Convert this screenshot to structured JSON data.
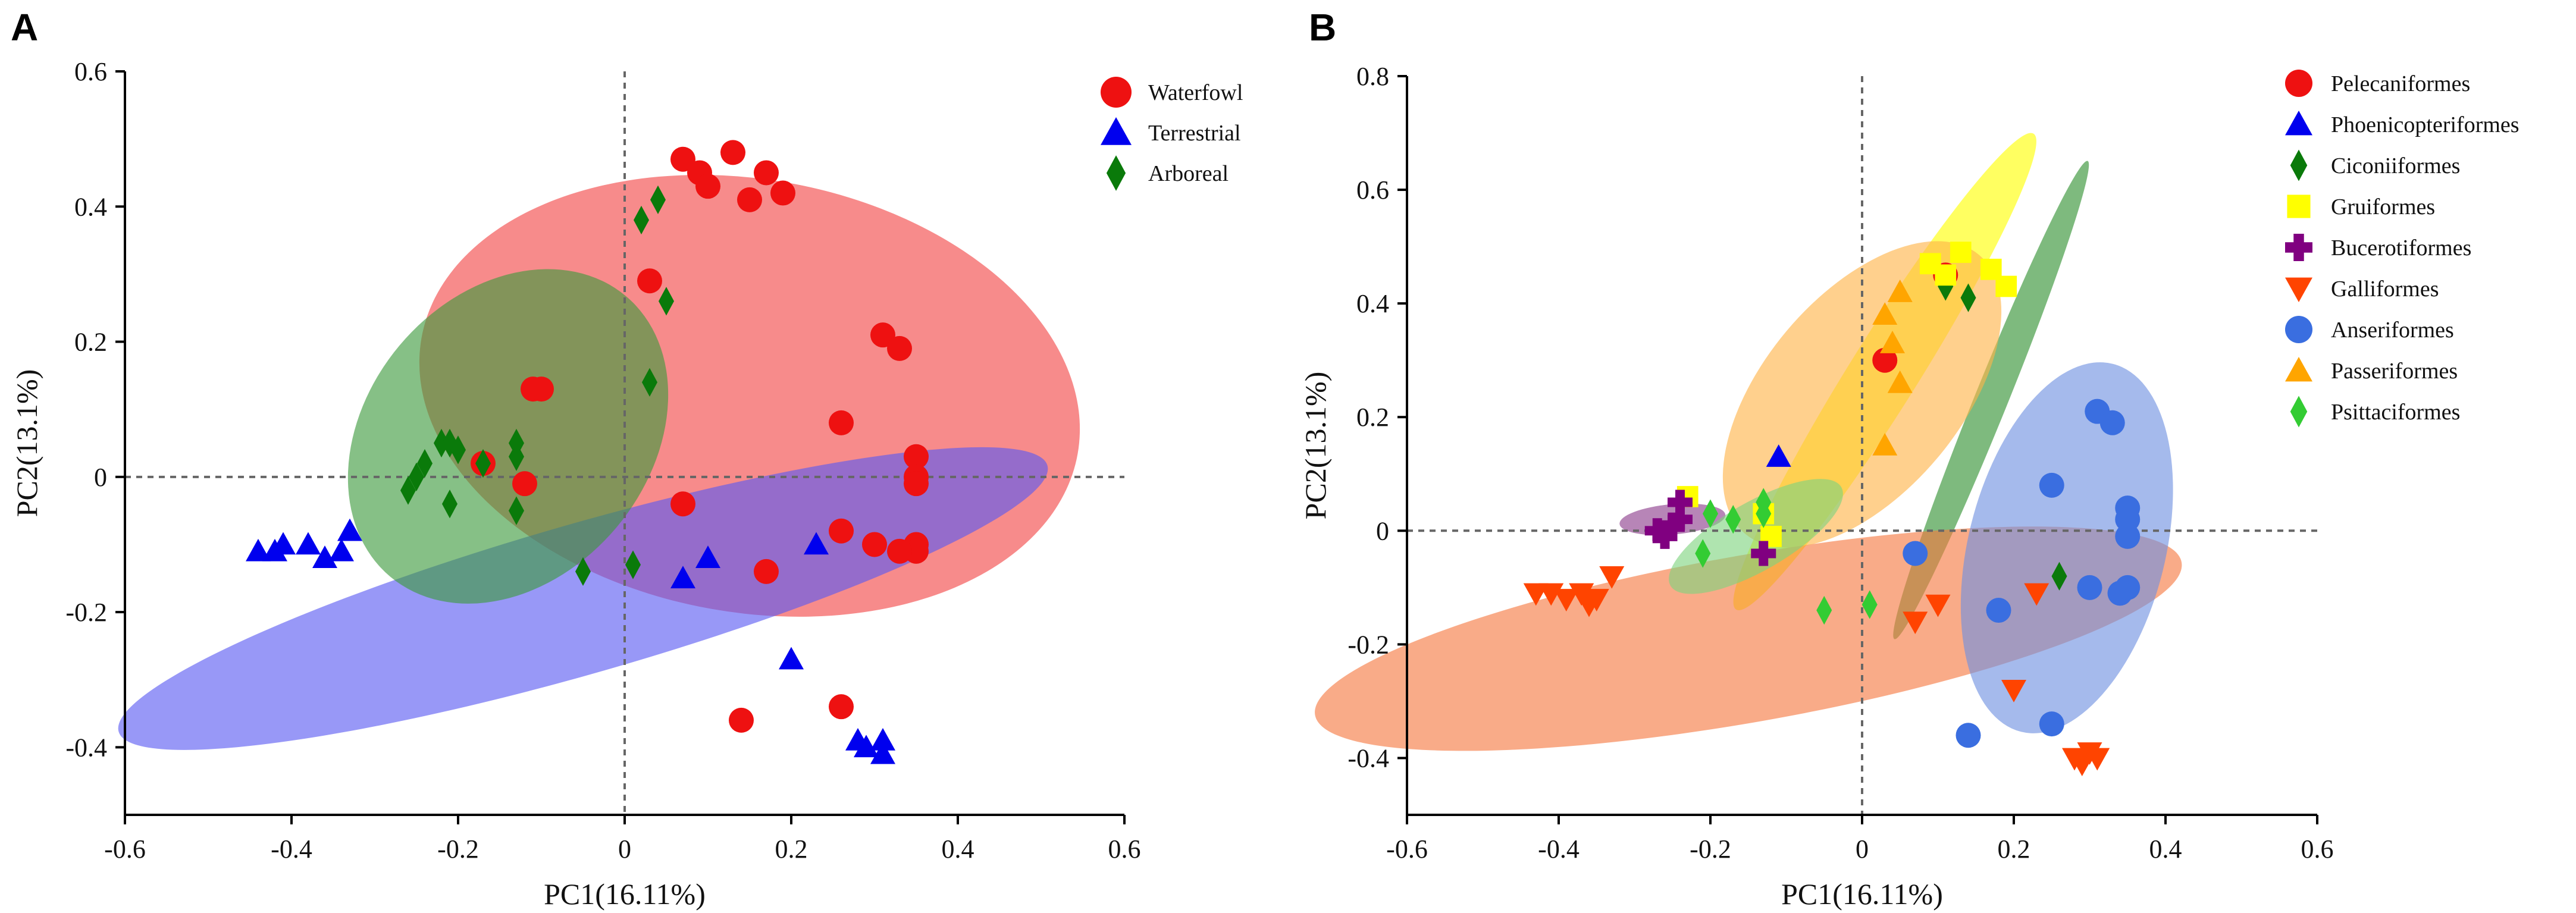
{
  "chart_data": [
    {
      "type": "scatter",
      "panel_label": "A",
      "xlabel": "PC1(16.11%)",
      "ylabel": "PC2(13.1%)",
      "xlim": [
        -0.6,
        0.6
      ],
      "ylim": [
        -0.5,
        0.6
      ],
      "xticks": [
        -0.6,
        -0.4,
        -0.2,
        0,
        0.2,
        0.4,
        0.6
      ],
      "xtick_labels": [
        "-0.6",
        "-0.4",
        "-0.2",
        "0",
        "0.2",
        "0.4",
        "0.6"
      ],
      "yticks": [
        -0.4,
        -0.2,
        0,
        0.2,
        0.4,
        0.6
      ],
      "ytick_labels": [
        "-0.4",
        "-0.2",
        "0",
        "0.2",
        "0.4",
        "0.6"
      ],
      "reference_lines": {
        "x": 0,
        "y": 0
      },
      "legend_position": "top-right",
      "series": [
        {
          "name": "Waterfowl",
          "color": "#ee1111",
          "marker": "circle",
          "ellipse": {
            "color": "#f24444",
            "cx": 0.15,
            "cy": 0.12,
            "rx": 0.26,
            "ry": 0.4,
            "angle": -80
          },
          "points": [
            [
              0.07,
              0.47
            ],
            [
              0.09,
              0.45
            ],
            [
              0.1,
              0.43
            ],
            [
              0.13,
              0.48
            ],
            [
              0.17,
              0.45
            ],
            [
              0.19,
              0.42
            ],
            [
              0.15,
              0.41
            ],
            [
              0.03,
              0.29
            ],
            [
              -0.11,
              0.13
            ],
            [
              -0.1,
              0.13
            ],
            [
              -0.17,
              0.02
            ],
            [
              -0.12,
              -0.01
            ],
            [
              0.07,
              -0.04
            ],
            [
              0.26,
              0.08
            ],
            [
              0.31,
              0.21
            ],
            [
              0.33,
              0.19
            ],
            [
              0.35,
              0.03
            ],
            [
              0.35,
              0.0
            ],
            [
              0.35,
              -0.01
            ],
            [
              0.35,
              -0.1
            ],
            [
              0.35,
              -0.11
            ],
            [
              0.33,
              -0.11
            ],
            [
              0.3,
              -0.1
            ],
            [
              0.26,
              -0.08
            ],
            [
              0.17,
              -0.14
            ],
            [
              0.26,
              -0.34
            ],
            [
              0.14,
              -0.36
            ]
          ]
        },
        {
          "name": "Terrestrial",
          "color": "#0000ee",
          "marker": "triangle",
          "ellipse": {
            "color": "#5858f2",
            "cx": -0.05,
            "cy": -0.18,
            "rx": 0.58,
            "ry": 0.09,
            "angle": -16
          },
          "points": [
            [
              -0.44,
              -0.11
            ],
            [
              -0.42,
              -0.11
            ],
            [
              -0.41,
              -0.1
            ],
            [
              -0.38,
              -0.1
            ],
            [
              -0.36,
              -0.12
            ],
            [
              -0.34,
              -0.11
            ],
            [
              -0.33,
              -0.08
            ],
            [
              0.1,
              -0.12
            ],
            [
              0.07,
              -0.15
            ],
            [
              0.23,
              -0.1
            ],
            [
              0.2,
              -0.27
            ],
            [
              0.28,
              -0.39
            ],
            [
              0.29,
              -0.4
            ],
            [
              0.31,
              -0.39
            ],
            [
              0.31,
              -0.41
            ]
          ]
        },
        {
          "name": "Arboreal",
          "color": "#0a7a0a",
          "marker": "diamond",
          "ellipse": {
            "color": "#3c9a3c",
            "cx": -0.14,
            "cy": 0.06,
            "rx": 0.17,
            "ry": 0.22,
            "angle": 40
          },
          "points": [
            [
              0.02,
              0.38
            ],
            [
              0.04,
              0.41
            ],
            [
              0.05,
              0.26
            ],
            [
              0.03,
              0.14
            ],
            [
              -0.22,
              0.05
            ],
            [
              -0.21,
              0.05
            ],
            [
              -0.2,
              0.04
            ],
            [
              -0.24,
              0.02
            ],
            [
              -0.25,
              0.0
            ],
            [
              -0.26,
              -0.02
            ],
            [
              -0.13,
              0.05
            ],
            [
              -0.13,
              0.03
            ],
            [
              -0.17,
              0.02
            ],
            [
              -0.21,
              -0.04
            ],
            [
              -0.13,
              -0.05
            ],
            [
              -0.05,
              -0.14
            ],
            [
              0.01,
              -0.13
            ]
          ]
        }
      ]
    },
    {
      "type": "scatter",
      "panel_label": "B",
      "xlabel": "PC1(16.11%)",
      "ylabel": "PC2(13.1%)",
      "xlim": [
        -0.6,
        0.6
      ],
      "ylim": [
        -0.5,
        0.8
      ],
      "xticks": [
        -0.6,
        -0.4,
        -0.2,
        0,
        0.2,
        0.4,
        0.6
      ],
      "xtick_labels": [
        "-0.6",
        "-0.4",
        "-0.2",
        "0",
        "0.2",
        "0.4",
        "0.6"
      ],
      "yticks": [
        -0.4,
        -0.2,
        0,
        0.2,
        0.4,
        0.6,
        0.8
      ],
      "ytick_labels": [
        "-0.4",
        "-0.2",
        "0",
        "0.2",
        "0.4",
        "0.6",
        "0.8"
      ],
      "reference_lines": {
        "x": 0,
        "y": 0
      },
      "legend_position": "top-right",
      "series": [
        {
          "name": "Pelecaniformes",
          "color": "#ee1111",
          "marker": "circle",
          "ellipse": null,
          "points": [
            [
              0.03,
              0.3
            ],
            [
              0.11,
              0.45
            ]
          ]
        },
        {
          "name": "Phoenicopteriformes",
          "color": "#0000ee",
          "marker": "triangle",
          "ellipse": null,
          "points": [
            [
              -0.11,
              0.13
            ]
          ]
        },
        {
          "name": "Ciconiiformes",
          "color": "#0a7a0a",
          "marker": "diamond",
          "ellipse": {
            "color": "#2f8f2f",
            "cx": 0.17,
            "cy": 0.23,
            "rx": 0.34,
            "ry": 0.022,
            "angle": -68
          },
          "points": [
            [
              0.11,
              0.43
            ],
            [
              0.14,
              0.41
            ],
            [
              0.26,
              -0.08
            ]
          ]
        },
        {
          "name": "Gruiformes",
          "color": "#ffff00",
          "marker": "square",
          "ellipse": {
            "color": "#ffff00",
            "cx": 0.03,
            "cy": 0.28,
            "rx": 0.37,
            "ry": 0.045,
            "angle": -58
          },
          "points": [
            [
              0.09,
              0.47
            ],
            [
              0.13,
              0.49
            ],
            [
              0.17,
              0.46
            ],
            [
              0.19,
              0.43
            ],
            [
              0.11,
              0.45
            ],
            [
              -0.23,
              0.06
            ],
            [
              -0.13,
              0.03
            ],
            [
              -0.12,
              -0.01
            ]
          ]
        },
        {
          "name": "Bucerotiformes",
          "color": "#800080",
          "marker": "plus",
          "ellipse": {
            "color": "#8a3a8a",
            "cx": -0.25,
            "cy": 0.02,
            "rx": 0.07,
            "ry": 0.02,
            "angle": -5
          },
          "points": [
            [
              -0.26,
              -0.01
            ],
            [
              -0.25,
              0.01
            ],
            [
              -0.24,
              0.02
            ],
            [
              -0.27,
              0.0
            ],
            [
              -0.24,
              0.05
            ],
            [
              -0.13,
              -0.04
            ]
          ]
        },
        {
          "name": "Galliformes",
          "color": "#ff4400",
          "marker": "triangle-down",
          "ellipse": {
            "color": "#f5773f",
            "cx": -0.15,
            "cy": -0.19,
            "rx": 0.58,
            "ry": 0.11,
            "angle": -10
          },
          "points": [
            [
              -0.43,
              -0.11
            ],
            [
              -0.41,
              -0.11
            ],
            [
              -0.39,
              -0.12
            ],
            [
              -0.37,
              -0.11
            ],
            [
              -0.35,
              -0.12
            ],
            [
              -0.33,
              -0.08
            ],
            [
              -0.36,
              -0.13
            ],
            [
              0.07,
              -0.16
            ],
            [
              0.1,
              -0.13
            ],
            [
              0.23,
              -0.11
            ],
            [
              0.2,
              -0.28
            ],
            [
              0.28,
              -0.4
            ],
            [
              0.29,
              -0.41
            ],
            [
              0.31,
              -0.4
            ],
            [
              0.3,
              -0.39
            ]
          ]
        },
        {
          "name": "Anseriformes",
          "color": "#3a6ee0",
          "marker": "circle",
          "ellipse": {
            "color": "#6e8fe0",
            "cx": 0.27,
            "cy": -0.03,
            "rx": 0.25,
            "ry": 0.13,
            "angle": -76
          },
          "points": [
            [
              0.31,
              0.21
            ],
            [
              0.33,
              0.19
            ],
            [
              0.25,
              0.08
            ],
            [
              0.35,
              0.04
            ],
            [
              0.35,
              0.02
            ],
            [
              0.35,
              -0.01
            ],
            [
              0.35,
              -0.1
            ],
            [
              0.34,
              -0.11
            ],
            [
              0.3,
              -0.1
            ],
            [
              0.07,
              -0.04
            ],
            [
              0.18,
              -0.14
            ],
            [
              0.25,
              -0.34
            ],
            [
              0.14,
              -0.36
            ]
          ]
        },
        {
          "name": "Passeriformes",
          "color": "#ffa500",
          "marker": "triangle",
          "ellipse": {
            "color": "#ffb347",
            "cx": 0.0,
            "cy": 0.24,
            "rx": 0.24,
            "ry": 0.13,
            "angle": -50
          },
          "points": [
            [
              0.03,
              0.38
            ],
            [
              0.05,
              0.42
            ],
            [
              0.04,
              0.33
            ],
            [
              0.05,
              0.26
            ],
            [
              0.03,
              0.15
            ]
          ]
        },
        {
          "name": "Psittaciformes",
          "color": "#33cc33",
          "marker": "diamond",
          "ellipse": {
            "color": "#7ed47e",
            "cx": -0.14,
            "cy": -0.01,
            "rx": 0.13,
            "ry": 0.045,
            "angle": -30
          },
          "points": [
            [
              -0.2,
              0.03
            ],
            [
              -0.17,
              0.02
            ],
            [
              -0.13,
              0.05
            ],
            [
              -0.13,
              0.03
            ],
            [
              -0.21,
              -0.04
            ],
            [
              -0.05,
              -0.14
            ],
            [
              0.01,
              -0.13
            ]
          ]
        }
      ]
    }
  ]
}
